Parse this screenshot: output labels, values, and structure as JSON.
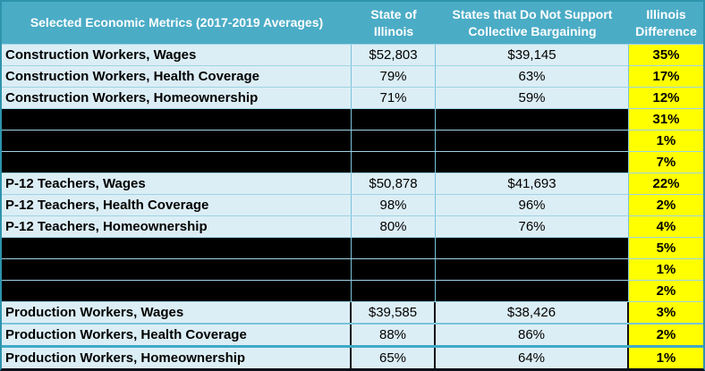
{
  "chart_data": {
    "type": "table",
    "title": "Selected Economic Metrics (2017-2019 Averages)",
    "columns": [
      "Selected Economic Metrics (2017-2019 Averages)",
      "State of\nIllinois",
      "States that Do Not Support\nCollective Bargaining",
      "Illinois\nDifference"
    ],
    "rows": [
      {
        "label": "Construction Workers, Wages",
        "illinois": "$52,803",
        "non_cb_states": "$39,145",
        "difference": "35%",
        "redacted": false
      },
      {
        "label": "Construction Workers, Health Coverage",
        "illinois": "79%",
        "non_cb_states": "63%",
        "difference": "17%",
        "redacted": false
      },
      {
        "label": "Construction Workers, Homeownership",
        "illinois": "71%",
        "non_cb_states": "59%",
        "difference": "12%",
        "redacted": false
      },
      {
        "label": "",
        "illinois": "",
        "non_cb_states": "",
        "difference": "31%",
        "redacted": true
      },
      {
        "label": "",
        "illinois": "",
        "non_cb_states": "",
        "difference": "1%",
        "redacted": true
      },
      {
        "label": "",
        "illinois": "",
        "non_cb_states": "",
        "difference": "7%",
        "redacted": true
      },
      {
        "label": "P-12 Teachers, Wages",
        "illinois": "$50,878",
        "non_cb_states": "$41,693",
        "difference": "22%",
        "redacted": false
      },
      {
        "label": "P-12 Teachers, Health Coverage",
        "illinois": "98%",
        "non_cb_states": "96%",
        "difference": "2%",
        "redacted": false
      },
      {
        "label": "P-12 Teachers, Homeownership",
        "illinois": "80%",
        "non_cb_states": "76%",
        "difference": "4%",
        "redacted": false
      },
      {
        "label": "",
        "illinois": "",
        "non_cb_states": "",
        "difference": "5%",
        "redacted": true
      },
      {
        "label": "",
        "illinois": "",
        "non_cb_states": "",
        "difference": "1%",
        "redacted": true
      },
      {
        "label": "",
        "illinois": "",
        "non_cb_states": "",
        "difference": "2%",
        "redacted": true
      },
      {
        "label": "Production Workers, Wages",
        "illinois": "$39,585",
        "non_cb_states": "$38,426",
        "difference": "3%",
        "redacted": false
      },
      {
        "label": "Production Workers, Health Coverage",
        "illinois": "88%",
        "non_cb_states": "86%",
        "difference": "2%",
        "redacted": false
      },
      {
        "label": "Production Workers, Homeownership",
        "illinois": "65%",
        "non_cb_states": "64%",
        "difference": "1%",
        "redacted": false
      }
    ]
  },
  "colors": {
    "header_bg": "#4BACC6",
    "header_text": "#FFFFFF",
    "row_bg": "#DCEEF5",
    "difference_bg": "#FFFF00",
    "redaction": "#000000"
  }
}
